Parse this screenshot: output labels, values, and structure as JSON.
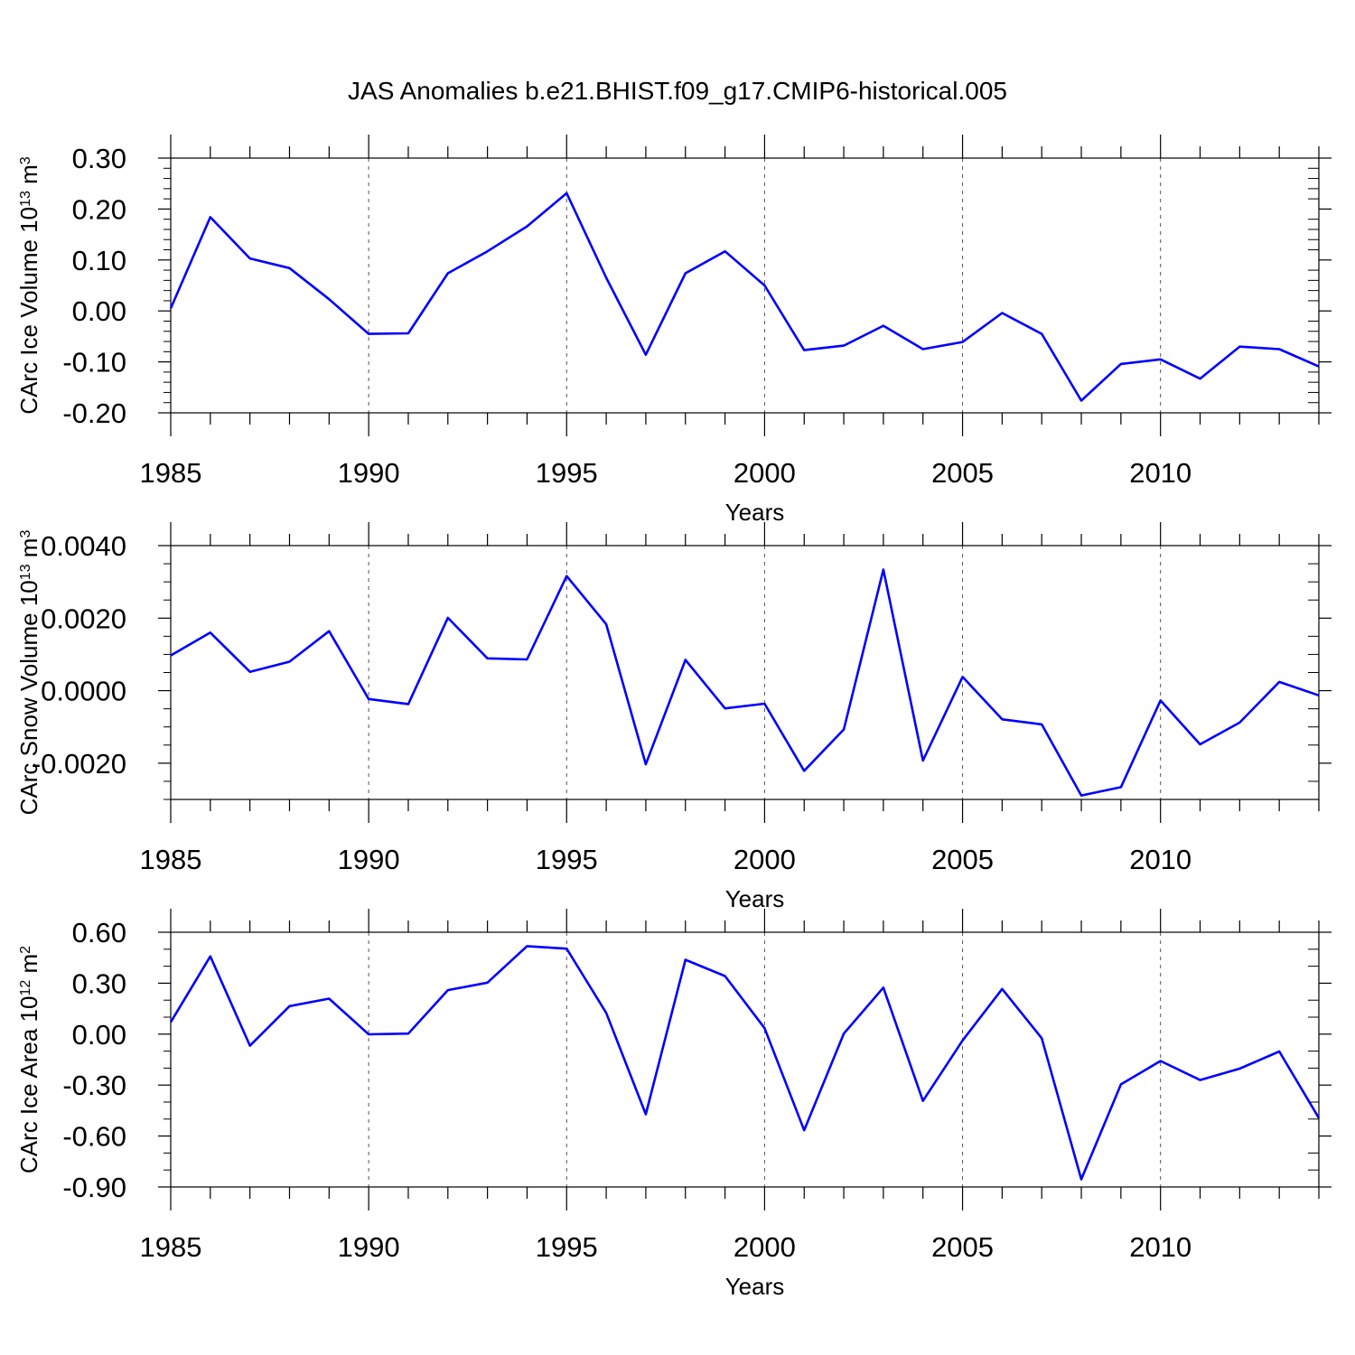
{
  "title": "JAS Anomalies b.e21.BHIST.f09_g17.CMIP6-historical.005",
  "line_color": "#0000ff",
  "chart_data": [
    {
      "type": "line",
      "ylabel": "CArc Ice Volume 10",
      "ylabel_exp": "13",
      "ylabel_unit": " m",
      "ylabel_unit_exp": "3",
      "xlabel": "Years",
      "xlim": [
        1985,
        2014
      ],
      "ylim": [
        -0.2,
        0.3
      ],
      "xticks": [
        1985,
        1990,
        1995,
        2000,
        2005,
        2010
      ],
      "xtick_labels": [
        "1985",
        "1990",
        "1995",
        "2000",
        "2005",
        "2010"
      ],
      "yticks": [
        -0.2,
        -0.1,
        0.0,
        0.1,
        0.2,
        0.3
      ],
      "ytick_labels": [
        "-0.20",
        "-0.10",
        "0.00",
        "0.10",
        "0.20",
        "0.30"
      ],
      "yminor": 0.02,
      "x": [
        1985,
        1986,
        1987,
        1988,
        1989,
        1990,
        1991,
        1992,
        1993,
        1994,
        1995,
        1996,
        1997,
        1998,
        1999,
        2000,
        2001,
        2002,
        2003,
        2004,
        2005,
        2006,
        2007,
        2008,
        2009,
        2010,
        2011,
        2012,
        2013,
        2014
      ],
      "series": [
        {
          "name": "CArc Ice Volume",
          "values": [
            0.005,
            0.184,
            0.103,
            0.084,
            0.023,
            -0.045,
            -0.044,
            0.074,
            0.117,
            0.166,
            0.231,
            0.065,
            -0.086,
            0.074,
            0.117,
            0.05,
            -0.077,
            -0.068,
            -0.029,
            -0.075,
            -0.061,
            -0.004,
            -0.045,
            -0.176,
            -0.104,
            -0.095,
            -0.133,
            -0.07,
            -0.075,
            -0.109
          ]
        }
      ]
    },
    {
      "type": "line",
      "ylabel": "CArc Snow Volume 10",
      "ylabel_exp": "13",
      "ylabel_unit": " m",
      "ylabel_unit_exp": "3",
      "xlabel": "Years",
      "xlim": [
        1985,
        2014
      ],
      "ylim": [
        -0.003,
        0.004
      ],
      "xticks": [
        1985,
        1990,
        1995,
        2000,
        2005,
        2010
      ],
      "xtick_labels": [
        "1985",
        "1990",
        "1995",
        "2000",
        "2005",
        "2010"
      ],
      "yticks": [
        -0.002,
        0.0,
        0.002,
        0.004
      ],
      "ytick_labels": [
        "-0.0020",
        "0.0000",
        "0.0020",
        "0.0040"
      ],
      "yminor": 0.0005,
      "x": [
        1985,
        1986,
        1987,
        1988,
        1989,
        1990,
        1991,
        1992,
        1993,
        1994,
        1995,
        1996,
        1997,
        1998,
        1999,
        2000,
        2001,
        2002,
        2003,
        2004,
        2005,
        2006,
        2007,
        2008,
        2009,
        2010,
        2011,
        2012,
        2013,
        2014
      ],
      "series": [
        {
          "name": "CArc Snow Volume",
          "values": [
            0.00097,
            0.0016,
            0.00052,
            0.0008,
            0.00164,
            -0.00023,
            -0.00037,
            0.00201,
            0.00089,
            0.00086,
            0.00316,
            0.00183,
            -0.00203,
            0.00085,
            -0.00049,
            -0.00036,
            -0.00221,
            -0.00107,
            0.00334,
            -0.00193,
            0.00038,
            -0.00079,
            -0.00093,
            -0.00289,
            -0.00266,
            -0.00027,
            -0.00148,
            -0.00088,
            0.00024,
            -0.00013
          ]
        }
      ]
    },
    {
      "type": "line",
      "ylabel": "CArc Ice Area 10",
      "ylabel_exp": "12",
      "ylabel_unit": " m",
      "ylabel_unit_exp": "2",
      "xlabel": "Years",
      "xlim": [
        1985,
        2014
      ],
      "ylim": [
        -0.9,
        0.6
      ],
      "xticks": [
        1985,
        1990,
        1995,
        2000,
        2005,
        2010
      ],
      "xtick_labels": [
        "1985",
        "1990",
        "1995",
        "2000",
        "2005",
        "2010"
      ],
      "yticks": [
        -0.9,
        -0.6,
        -0.3,
        0.0,
        0.3,
        0.6
      ],
      "ytick_labels": [
        "-0.90",
        "-0.60",
        "-0.30",
        "0.00",
        "0.30",
        "0.60"
      ],
      "yminor": 0.1,
      "x": [
        1985,
        1986,
        1987,
        1988,
        1989,
        1990,
        1991,
        1992,
        1993,
        1994,
        1995,
        1996,
        1997,
        1998,
        1999,
        2000,
        2001,
        2002,
        2003,
        2004,
        2005,
        2006,
        2007,
        2008,
        2009,
        2010,
        2011,
        2012,
        2013,
        2014
      ],
      "series": [
        {
          "name": "CArc Ice Area",
          "values": [
            0.07,
            0.458,
            -0.068,
            0.165,
            0.209,
            -0.001,
            0.003,
            0.259,
            0.303,
            0.518,
            0.503,
            0.125,
            -0.472,
            0.438,
            0.342,
            0.035,
            -0.566,
            0.003,
            0.274,
            -0.393,
            -0.037,
            0.266,
            -0.024,
            -0.855,
            -0.296,
            -0.158,
            -0.27,
            -0.203,
            -0.102,
            -0.494
          ]
        }
      ]
    }
  ]
}
